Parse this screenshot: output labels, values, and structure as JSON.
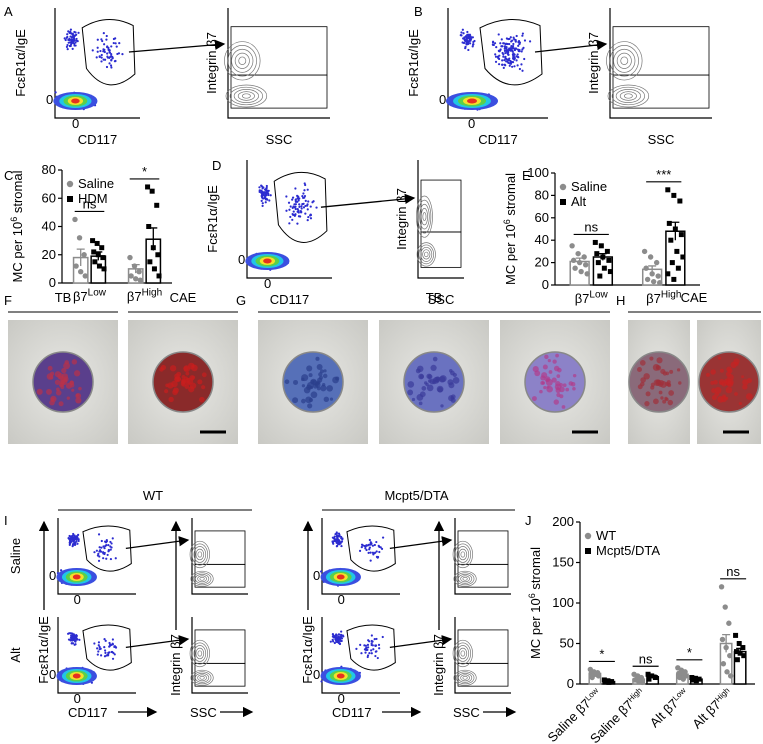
{
  "panel_labels": [
    "A",
    "B",
    "C",
    "D",
    "E",
    "F",
    "G",
    "H",
    "I",
    "J"
  ],
  "flow": {
    "y_label": "FcεR1α/IgE",
    "x_label": "CD117",
    "y2_label": "Integrin β7",
    "x2_label": "SSC",
    "zero": "0"
  },
  "histology": {
    "F": [
      "TB",
      "CAE"
    ],
    "G": "TB",
    "H": "CAE"
  },
  "panel_i": {
    "groups": [
      "WT",
      "Mcpt5/DTA"
    ],
    "rows": [
      "Saline",
      "Alt"
    ]
  },
  "chart_data": [
    {
      "type": "bar",
      "ylabel": [
        "MC per 10",
        "6",
        " stromal"
      ],
      "categories": [
        [
          "β7",
          "Low"
        ],
        [
          "β7",
          "High"
        ]
      ],
      "ylim": [
        0,
        80
      ],
      "yticks": [
        0,
        20,
        40,
        60,
        80
      ],
      "legend": "upper-left",
      "annotations": [
        "ns",
        "*"
      ],
      "series": [
        {
          "name": "Saline",
          "color": "#8c8c8c",
          "marker": "circle",
          "values": [
            18,
            10
          ],
          "errors": [
            6,
            3
          ],
          "points": [
            [
              45,
              32,
              20,
              12,
              8,
              5
            ],
            [
              18,
              12,
              8,
              5,
              3,
              2
            ]
          ]
        },
        {
          "name": "HDM",
          "color": "#000000",
          "marker": "square",
          "values": [
            19,
            31
          ],
          "errors": [
            3,
            8
          ],
          "points": [
            [
              30,
              28,
              25,
              22,
              20,
              18,
              15,
              12,
              10
            ],
            [
              68,
              65,
              55,
              40,
              25,
              20,
              15,
              10,
              5
            ]
          ]
        }
      ]
    },
    {
      "type": "bar",
      "ylabel": [
        "MC per 10",
        "6",
        " stromal"
      ],
      "categories": [
        [
          "β7",
          "Low"
        ],
        [
          "β7",
          "High"
        ]
      ],
      "ylim": [
        0,
        100
      ],
      "yticks": [
        0,
        20,
        40,
        60,
        80,
        100
      ],
      "legend": "upper-left",
      "annotations": [
        "ns",
        "***"
      ],
      "series": [
        {
          "name": "Saline",
          "color": "#8c8c8c",
          "marker": "circle",
          "values": [
            21,
            14
          ],
          "errors": [
            3,
            3
          ],
          "points": [
            [
              35,
              28,
              25,
              22,
              20,
              18,
              15,
              12,
              10
            ],
            [
              30,
              25,
              20,
              15,
              10,
              8,
              5,
              3,
              2
            ]
          ]
        },
        {
          "name": "Alt",
          "color": "#000000",
          "marker": "square",
          "values": [
            25,
            48
          ],
          "errors": [
            3,
            8
          ],
          "points": [
            [
              38,
              35,
              30,
              28,
              25,
              22,
              20,
              15,
              12,
              8
            ],
            [
              85,
              80,
              75,
              55,
              50,
              45,
              40,
              30,
              25,
              20,
              15,
              10,
              5
            ]
          ]
        }
      ]
    },
    {
      "type": "bar",
      "ylabel": [
        "MC per 10",
        "6",
        " stromal"
      ],
      "categories": [
        [
          "Saline β7",
          "Low"
        ],
        [
          "Saline β7",
          "High"
        ],
        [
          "Alt β7",
          "Low"
        ],
        [
          "Alt β7",
          "High"
        ]
      ],
      "ylim": [
        0,
        200
      ],
      "yticks": [
        0,
        50,
        100,
        150,
        200
      ],
      "legend": "upper-left",
      "annotations": [
        "*",
        "ns",
        "*",
        "ns"
      ],
      "series": [
        {
          "name": "WT",
          "color": "#8c8c8c",
          "marker": "circle",
          "values": [
            13,
            6,
            12,
            50
          ],
          "errors": [
            2,
            2,
            2,
            11
          ],
          "points": [
            [
              18,
              15,
              14,
              13,
              12,
              10,
              8
            ],
            [
              12,
              10,
              8,
              5,
              3,
              2
            ],
            [
              20,
              17,
              15,
              13,
              12,
              10,
              8,
              6
            ],
            [
              120,
              95,
              75,
              55,
              45,
              35,
              25,
              15,
              10
            ]
          ]
        },
        {
          "name": "Mcpt5/DTA",
          "color": "#000000",
          "marker": "square",
          "values": [
            3,
            9,
            6,
            40
          ],
          "errors": [
            1,
            2,
            1,
            4
          ],
          "points": [
            [
              5,
              4,
              3,
              3,
              2
            ],
            [
              12,
              10,
              8,
              6
            ],
            [
              8,
              7,
              6,
              5,
              4
            ],
            [
              60,
              50,
              45,
              40,
              38,
              35,
              30
            ]
          ]
        }
      ]
    }
  ]
}
